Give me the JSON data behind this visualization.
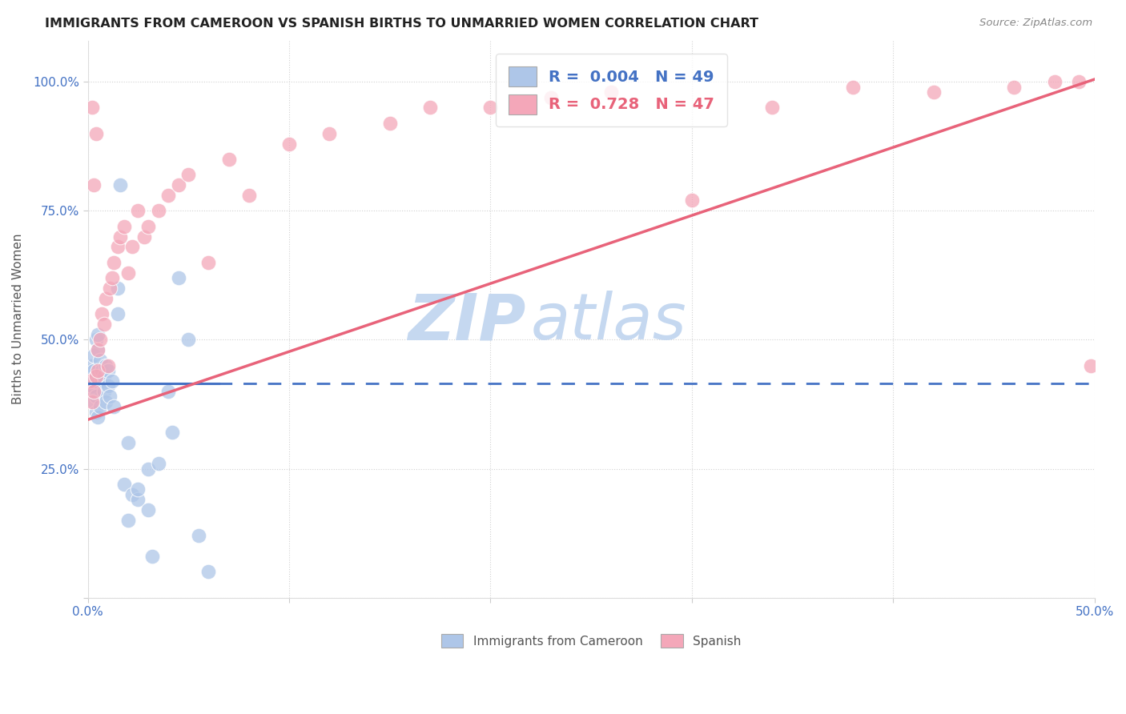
{
  "title": "IMMIGRANTS FROM CAMEROON VS SPANISH BIRTHS TO UNMARRIED WOMEN CORRELATION CHART",
  "source": "Source: ZipAtlas.com",
  "ylabel": "Births to Unmarried Women",
  "x_min": 0.0,
  "x_max": 0.5,
  "y_min": 0.0,
  "y_max": 1.08,
  "x_tick_positions": [
    0.0,
    0.1,
    0.2,
    0.3,
    0.4,
    0.5
  ],
  "x_tick_labels": [
    "0.0%",
    "",
    "",
    "",
    "",
    "50.0%"
  ],
  "y_tick_positions": [
    0.0,
    0.25,
    0.5,
    0.75,
    1.0
  ],
  "y_tick_labels": [
    "",
    "25.0%",
    "50.0%",
    "75.0%",
    "100.0%"
  ],
  "legend_label1": "R =  0.004   N = 49",
  "legend_label2": "R =  0.728   N = 47",
  "legend_color1": "#aec6e8",
  "legend_color2": "#f4a7b9",
  "scatter_color1": "#aec6e8",
  "scatter_color2": "#f4a7b9",
  "line_color_blue": "#4472c4",
  "line_color_pink": "#e8637a",
  "watermark_zip": "ZIP",
  "watermark_atlas": "atlas",
  "watermark_color_zip": "#c5d8f0",
  "watermark_color_atlas": "#c5d8f0",
  "grid_color": "#cccccc",
  "background_color": "#ffffff",
  "title_color": "#222222",
  "axis_tick_color": "#4472c4",
  "ylabel_color": "#555555",
  "blue_line_y": 0.415,
  "blue_line_solid_end_x": 0.065,
  "pink_line_y0": 0.345,
  "pink_line_y1": 1.005,
  "blue_x": [
    0.001,
    0.001,
    0.002,
    0.002,
    0.002,
    0.002,
    0.003,
    0.003,
    0.003,
    0.003,
    0.004,
    0.004,
    0.004,
    0.004,
    0.005,
    0.005,
    0.005,
    0.006,
    0.006,
    0.007,
    0.007,
    0.008,
    0.008,
    0.009,
    0.009,
    0.01,
    0.01,
    0.011,
    0.012,
    0.013,
    0.015,
    0.015,
    0.016,
    0.018,
    0.02,
    0.02,
    0.022,
    0.025,
    0.025,
    0.03,
    0.03,
    0.032,
    0.035,
    0.04,
    0.042,
    0.045,
    0.05,
    0.055,
    0.06
  ],
  "blue_y": [
    0.42,
    0.44,
    0.4,
    0.43,
    0.41,
    0.45,
    0.38,
    0.42,
    0.44,
    0.47,
    0.5,
    0.36,
    0.39,
    0.43,
    0.35,
    0.48,
    0.51,
    0.37,
    0.46,
    0.44,
    0.42,
    0.4,
    0.43,
    0.38,
    0.45,
    0.41,
    0.44,
    0.39,
    0.42,
    0.37,
    0.55,
    0.6,
    0.8,
    0.22,
    0.3,
    0.15,
    0.2,
    0.19,
    0.21,
    0.25,
    0.17,
    0.08,
    0.26,
    0.4,
    0.32,
    0.62,
    0.5,
    0.12,
    0.05
  ],
  "pink_x": [
    0.001,
    0.002,
    0.002,
    0.003,
    0.003,
    0.004,
    0.004,
    0.005,
    0.005,
    0.006,
    0.007,
    0.008,
    0.009,
    0.01,
    0.011,
    0.012,
    0.013,
    0.015,
    0.016,
    0.018,
    0.02,
    0.022,
    0.025,
    0.028,
    0.03,
    0.035,
    0.04,
    0.045,
    0.05,
    0.06,
    0.07,
    0.08,
    0.1,
    0.12,
    0.15,
    0.17,
    0.2,
    0.23,
    0.26,
    0.3,
    0.34,
    0.38,
    0.42,
    0.46,
    0.48,
    0.492,
    0.498
  ],
  "pink_y": [
    0.42,
    0.38,
    0.95,
    0.4,
    0.8,
    0.43,
    0.9,
    0.48,
    0.44,
    0.5,
    0.55,
    0.53,
    0.58,
    0.45,
    0.6,
    0.62,
    0.65,
    0.68,
    0.7,
    0.72,
    0.63,
    0.68,
    0.75,
    0.7,
    0.72,
    0.75,
    0.78,
    0.8,
    0.82,
    0.65,
    0.85,
    0.78,
    0.88,
    0.9,
    0.92,
    0.95,
    0.95,
    0.97,
    0.98,
    0.77,
    0.95,
    0.99,
    0.98,
    0.99,
    1.0,
    1.0,
    0.45
  ]
}
